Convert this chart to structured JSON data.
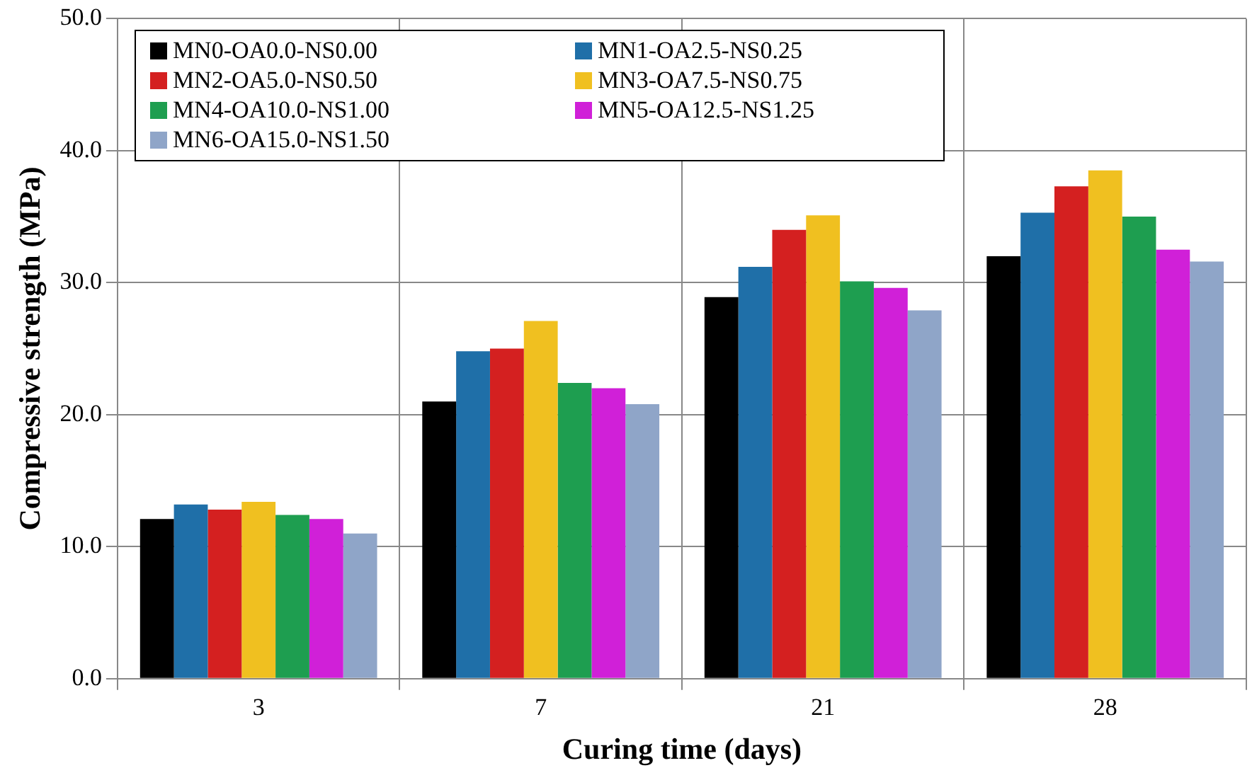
{
  "chart_data": {
    "type": "bar",
    "xlabel": "Curing time (days)",
    "ylabel": "Compressive strength (MPa)",
    "categories": [
      "3",
      "7",
      "21",
      "28"
    ],
    "series": [
      {
        "name": "MN0-OA0.0-NS0.00",
        "color": "#000000",
        "values": [
          12.1,
          21.0,
          28.9,
          32.0
        ]
      },
      {
        "name": "MN1-OA2.5-NS0.25",
        "color": "#1f6fa8",
        "values": [
          13.2,
          24.8,
          31.2,
          35.3
        ]
      },
      {
        "name": "MN2-OA5.0-NS0.50",
        "color": "#d42020",
        "values": [
          12.8,
          25.0,
          34.0,
          37.3
        ]
      },
      {
        "name": "MN3-OA7.5-NS0.75",
        "color": "#f0c020",
        "values": [
          13.4,
          27.1,
          35.1,
          38.5
        ]
      },
      {
        "name": "MN4-OA10.0-NS1.00",
        "color": "#1e9e50",
        "values": [
          12.4,
          22.4,
          30.1,
          35.0
        ]
      },
      {
        "name": "MN5-OA12.5-NS1.25",
        "color": "#d020d8",
        "values": [
          12.1,
          22.0,
          29.6,
          32.5
        ]
      },
      {
        "name": "MN6-OA15.0-NS1.50",
        "color": "#8fa5c8",
        "values": [
          11.0,
          20.8,
          27.9,
          31.6
        ]
      }
    ],
    "ylim": [
      0,
      50
    ],
    "yticks": [
      {
        "value": 0,
        "label": "0.0"
      },
      {
        "value": 10,
        "label": "10.0"
      },
      {
        "value": 20,
        "label": "20.0"
      },
      {
        "value": 30,
        "label": "30.0"
      },
      {
        "value": 40,
        "label": "40.0"
      },
      {
        "value": 50,
        "label": "50.0"
      }
    ],
    "grid": true,
    "legend": "top left"
  }
}
